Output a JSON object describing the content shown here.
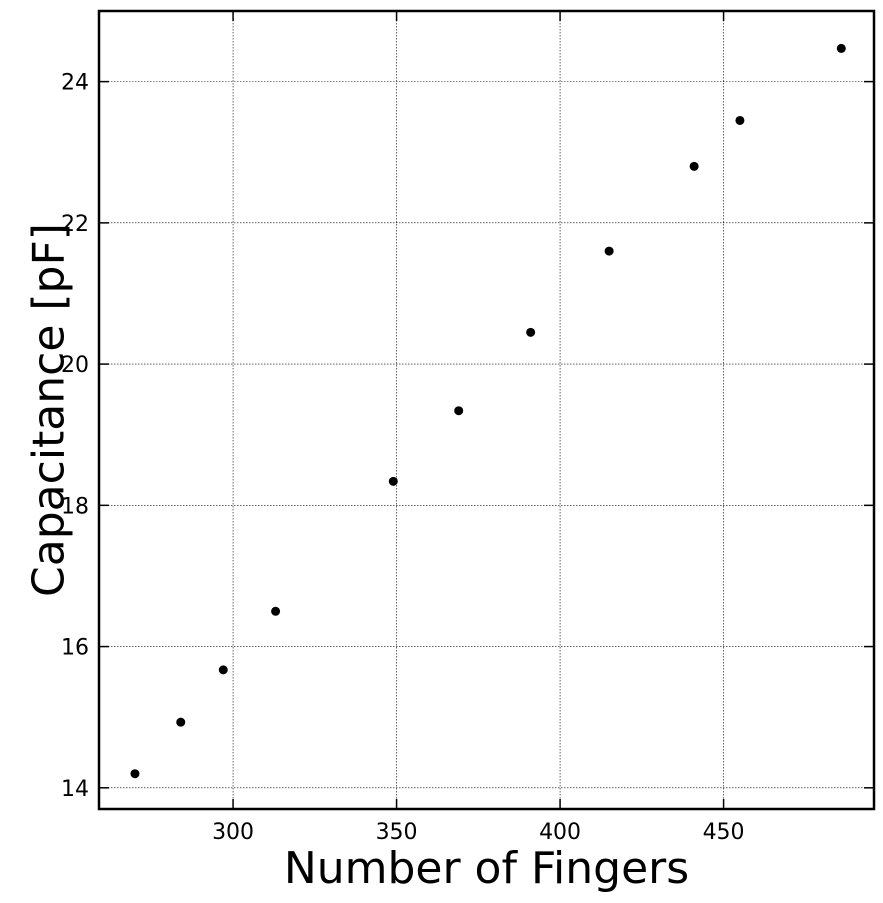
{
  "chart_data": {
    "type": "scatter",
    "title": "",
    "xlabel": "Number of Fingers",
    "ylabel": "Capacitance [pF]",
    "xlim": [
      259,
      496
    ],
    "ylim": [
      13.7,
      25.0
    ],
    "grid": true,
    "xticks": [
      300,
      350,
      400,
      450
    ],
    "yticks": [
      14,
      16,
      18,
      20,
      22,
      24
    ],
    "point_color": "#000000",
    "series": [
      {
        "x": [
          270,
          284,
          297,
          313,
          349,
          369,
          391,
          415,
          441,
          455,
          486
        ],
        "y": [
          14.2,
          14.93,
          15.67,
          16.5,
          18.34,
          19.34,
          20.45,
          21.6,
          22.8,
          23.45,
          24.47
        ]
      }
    ]
  }
}
